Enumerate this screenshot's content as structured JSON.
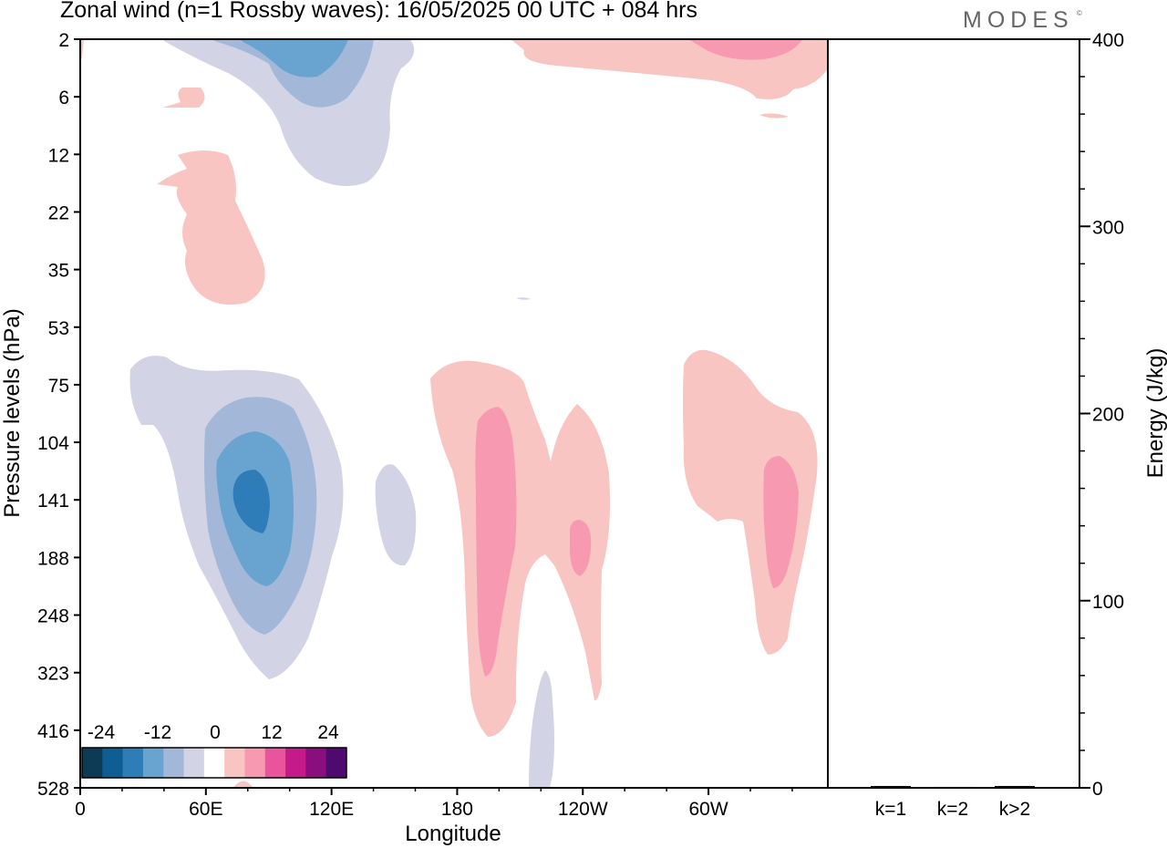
{
  "header": {
    "title": "Zonal wind (n=1 Rossby waves):  16/05/2025  00 UTC  + 084 hrs",
    "brand": "MODES",
    "brand_mark": "©"
  },
  "colors": {
    "levels": [
      "#0d3b55",
      "#0e5e93",
      "#2f7db8",
      "#68a4cf",
      "#a3b7d8",
      "#d2d3e5",
      "#ffffff",
      "#f8c5c2",
      "#f79ab1",
      "#e8559c",
      "#c51b8a",
      "#8a0e7e",
      "#4e0a6e"
    ],
    "negative_1": "#d2d3e5",
    "negative_2": "#a3b7d8",
    "negative_3": "#68a4cf",
    "negative_4": "#2f7db8",
    "positive_1": "#f8c5c2",
    "positive_2": "#f79ab1"
  },
  "chart_data": [
    {
      "type": "heatmap",
      "title": "Zonal wind (n=1 Rossby waves):  16/05/2025  00 UTC  + 084 hrs",
      "xlabel": "Longitude",
      "ylabel": "Pressure levels (hPa)",
      "x_ticks": [
        "0",
        "60E",
        "120E",
        "180",
        "120W",
        "60W"
      ],
      "x_tick_values": [
        0,
        60,
        120,
        180,
        240,
        300
      ],
      "xlim": [
        0,
        357
      ],
      "y_ticks": [
        "2",
        "6",
        "12",
        "22",
        "35",
        "53",
        "75",
        "104",
        "141",
        "188",
        "248",
        "323",
        "416",
        "528"
      ],
      "y_scale": "categorical model levels, top to bottom",
      "colorbar": {
        "tick_labels": [
          "-24",
          "-12",
          "0",
          "12",
          "24"
        ],
        "placement": "bottom-left",
        "bins": 13
      },
      "features": [
        {
          "sign": "negative",
          "lon_range": [
            82,
            155
          ],
          "level_range": [
            "2",
            "12"
          ],
          "max_magnitude": "-12"
        },
        {
          "sign": "positive",
          "lon_range": [
            40,
            90
          ],
          "level_range": [
            "6",
            "35"
          ],
          "max_magnitude": "4"
        },
        {
          "sign": "positive",
          "lon_range": [
            220,
            357
          ],
          "level_range": [
            "2",
            "6"
          ],
          "max_magnitude": "8"
        },
        {
          "sign": "negative",
          "lon_range": [
            24,
            126
          ],
          "level_range": [
            "53",
            "323"
          ],
          "max_magnitude": "-16"
        },
        {
          "sign": "negative",
          "lon_range": [
            142,
            160
          ],
          "level_range": [
            "104",
            "188"
          ],
          "max_magnitude": "-4"
        },
        {
          "sign": "positive",
          "lon_range": [
            167,
            260
          ],
          "level_range": [
            "75",
            "416"
          ],
          "max_magnitude": "8"
        },
        {
          "sign": "positive",
          "lon_range": [
            287,
            352
          ],
          "level_range": [
            "53",
            "323"
          ],
          "max_magnitude": "8"
        },
        {
          "sign": "negative",
          "lon_range": [
            214,
            228
          ],
          "level_range": [
            "323",
            "528"
          ],
          "max_magnitude": "-4"
        }
      ]
    },
    {
      "type": "bar",
      "ylabel": "Energy (J/kg)",
      "categories": [
        "k=1",
        "k=2",
        "k>2"
      ],
      "values": [
        1,
        0.5,
        1
      ],
      "ylim": [
        0,
        400
      ],
      "y_ticks": [
        "0",
        "100",
        "200",
        "300",
        "400"
      ]
    }
  ]
}
